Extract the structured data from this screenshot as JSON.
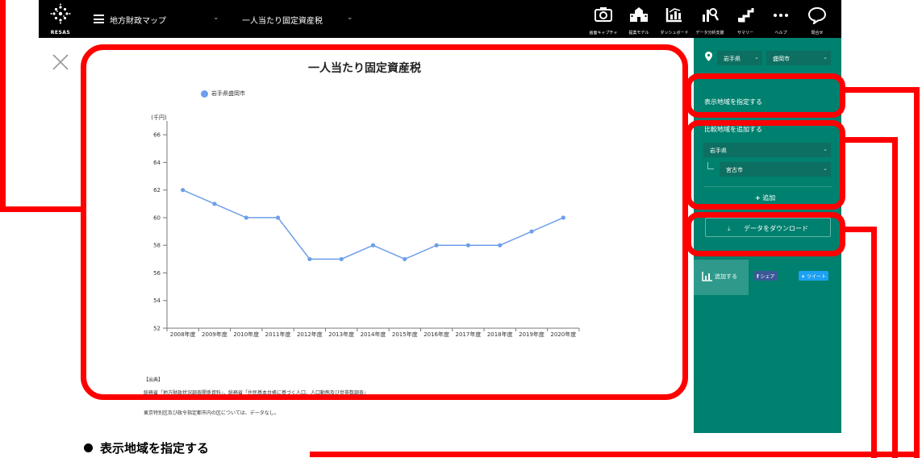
{
  "header": {
    "logo_text": "RESAS",
    "map_menu": "地方財政マップ",
    "indicator_menu": "一人当たり固定資産税",
    "tools": [
      {
        "label": "画面キャプチャ",
        "icon": "camera-icon"
      },
      {
        "label": "提案モデル",
        "icon": "school-icon"
      },
      {
        "label": "ダッシュボード",
        "icon": "dashboard-icon"
      },
      {
        "label": "データ分析支援",
        "icon": "analysis-icon"
      },
      {
        "label": "サマリー",
        "icon": "summary-icon"
      },
      {
        "label": "ヘルプ",
        "icon": "more-icon"
      },
      {
        "label": "問合せ",
        "icon": "speech-bubble-icon"
      }
    ]
  },
  "chart_data": {
    "type": "line",
    "title": "一人当たり固定資産税",
    "ylabel": "(千円)",
    "categories": [
      "2008年度",
      "2009年度",
      "2010年度",
      "2011年度",
      "2012年度",
      "2013年度",
      "2014年度",
      "2015年度",
      "2016年度",
      "2017年度",
      "2018年度",
      "2019年度",
      "2020年度"
    ],
    "series": [
      {
        "name": "岩手県盛岡市",
        "values": [
          62,
          61,
          60,
          60,
          57,
          57,
          58,
          57,
          58,
          58,
          58,
          59,
          60
        ],
        "color": "#6d9eeb"
      }
    ],
    "ylim": [
      52,
      67
    ],
    "yticks": [
      52,
      54,
      56,
      58,
      60,
      62,
      64,
      66
    ],
    "legend": "top-left",
    "grid": false
  },
  "source": {
    "heading": "【出典】",
    "line1": "総務省「地方財政状況調査関係資料」、総務省「住民基本台帳に基づく人口、人口動態及び世帯数調査」",
    "note": "東京特別区及び政令指定都市内の区については、データなし。"
  },
  "side": {
    "pref": "岩手県",
    "city": "盛岡市",
    "display_region_label": "表示地域を指定する",
    "compare_label": "比較地域を追加する",
    "compare_pref": "岩手県",
    "compare_city": "宮古市",
    "add_label": "追加",
    "download_label": "データをダウンロード",
    "add_chart_label": "追加する",
    "share_label": "シェア",
    "tweet_label": "ツイート"
  },
  "caption": "表示地域を指定する",
  "colors": {
    "accent": "#00806f",
    "highlight": "#ff0000",
    "line": "#6d9eeb",
    "header": "#000000"
  }
}
